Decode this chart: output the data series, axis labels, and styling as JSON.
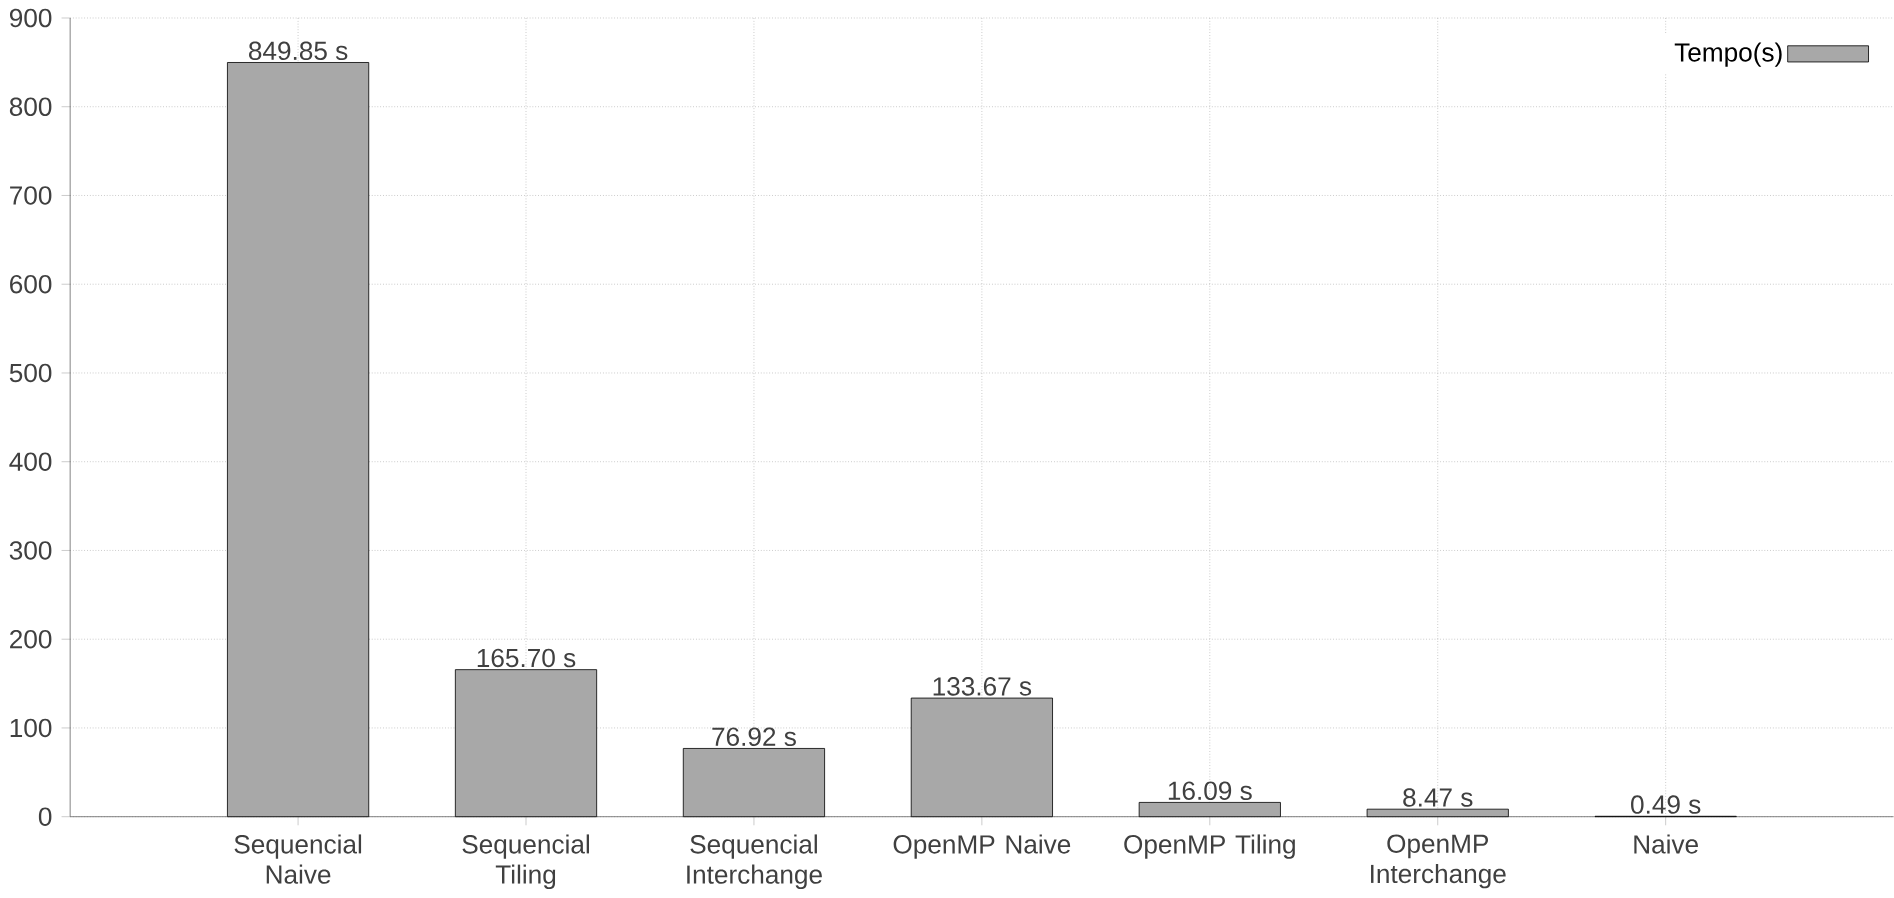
{
  "chart_data": {
    "type": "bar",
    "categories": [
      "Sequencial Naive",
      "Sequencial Tiling",
      "Sequencial Interchange",
      "OpenMP Naive",
      "OpenMP Tiling",
      "OpenMP Interchange",
      "Naive"
    ],
    "series": [
      {
        "name": "Tempo(s)",
        "color": "#a8a8a8",
        "values": [
          849.85,
          165.7,
          76.92,
          133.67,
          16.09,
          8.47,
          0.49
        ],
        "value_labels": [
          "849.85 s",
          "165.70 s",
          "76.92 s",
          "133.67 s",
          "16.09 s",
          "8.47 s",
          "0.49 s"
        ]
      }
    ],
    "ylim": [
      0,
      900
    ],
    "yticks": [
      0,
      100,
      200,
      300,
      400,
      500,
      600,
      700,
      800,
      900
    ],
    "grid": true,
    "legend": "top right"
  }
}
